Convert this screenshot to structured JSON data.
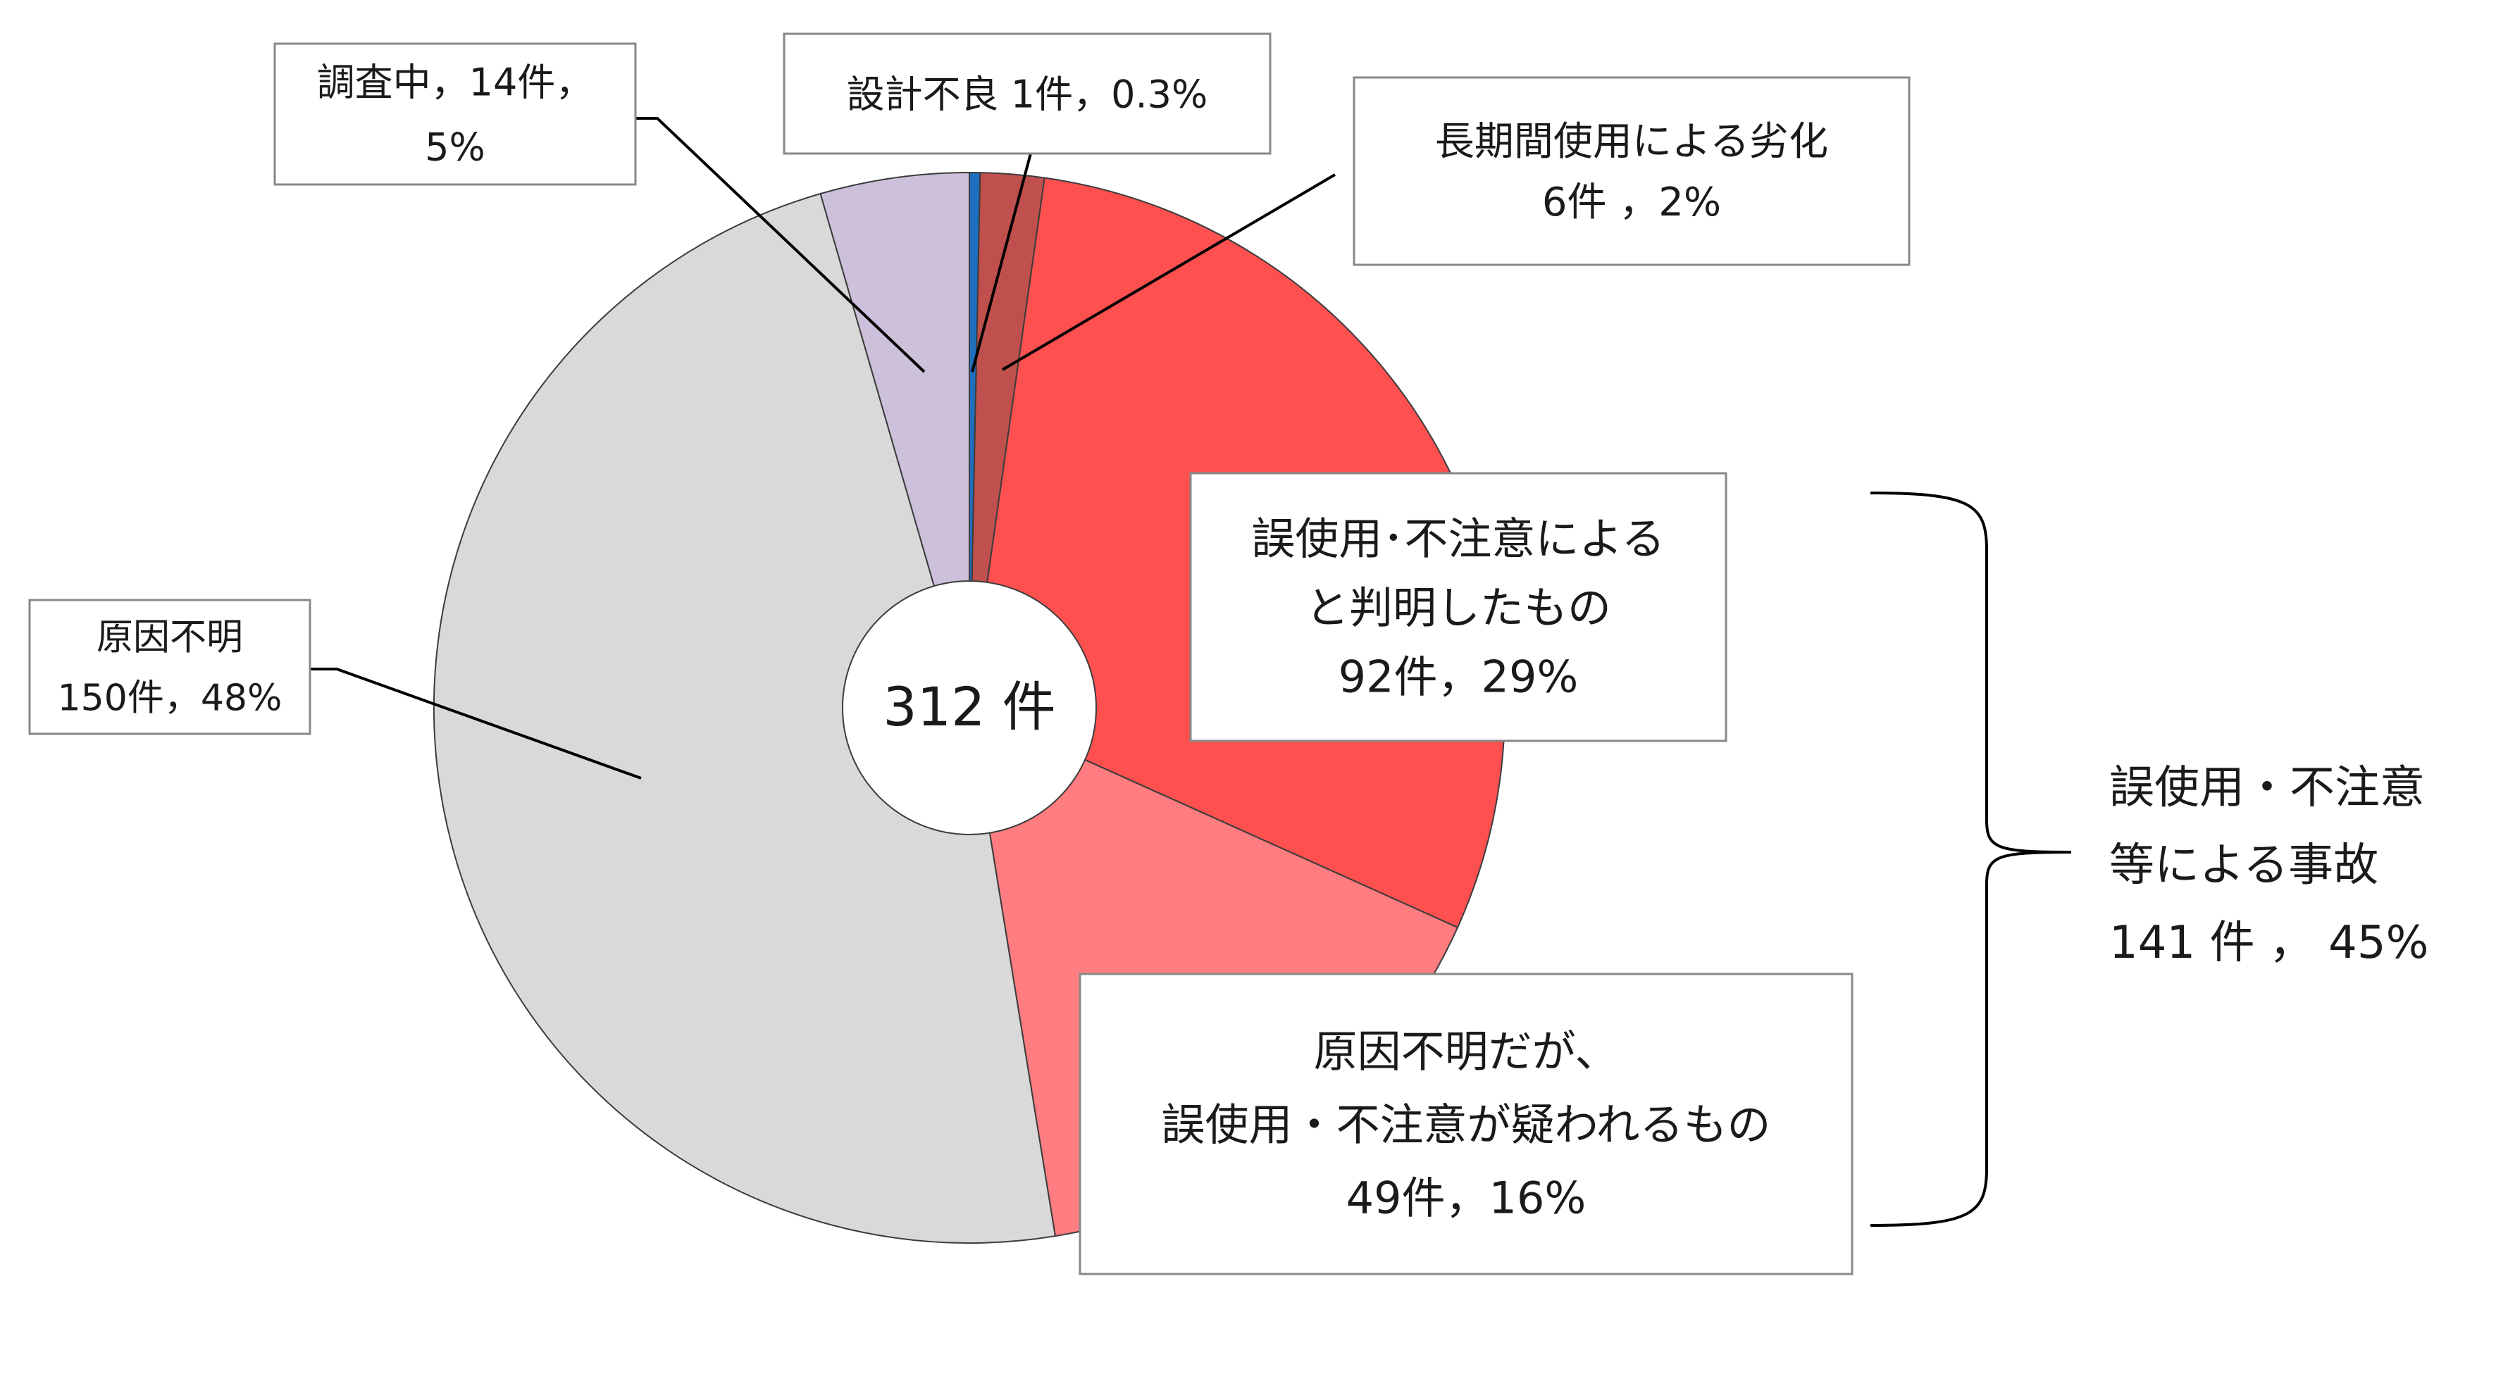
{
  "chart_data": {
    "type": "pie",
    "variant": "donut",
    "center_label": "312 件",
    "slices": [
      {
        "name": "設計不良",
        "count": 1,
        "percent": 0.3,
        "color": "#1f6fbf",
        "label_lines": [
          "設計不良 1件，0.3%"
        ]
      },
      {
        "name": "長期間使用による劣化",
        "count": 6,
        "percent": 2,
        "color": "#c0504d",
        "label_lines": [
          "長期間使用による劣化",
          "6件 ，2%"
        ]
      },
      {
        "name": "誤使用・不注意によると判明したもの",
        "count": 92,
        "percent": 29,
        "color": "#ff5050",
        "label_lines": [
          "誤使用･不注意による",
          "と判明したもの",
          "92件，29%"
        ]
      },
      {
        "name": "原因不明だが、誤使用・不注意が疑われるもの",
        "count": 49,
        "percent": 16,
        "color": "#ff7c80",
        "label_lines": [
          "原因不明だが、",
          "誤使用・不注意が疑われるもの",
          "49件，16%"
        ]
      },
      {
        "name": "原因不明",
        "count": 150,
        "percent": 48,
        "color": "#d9d9d9",
        "label_lines": [
          "原因不明",
          "150件，48%"
        ]
      },
      {
        "name": "調査中",
        "count": 14,
        "percent": 5,
        "color": "#ccc0da",
        "label_lines": [
          "調査中，14件，",
          "5%"
        ]
      }
    ],
    "group_annotation": {
      "lines": [
        "誤使用・不注意",
        "等による事故",
        "141 件 ， 45%"
      ],
      "covers": [
        "誤使用・不注意によると判明したもの",
        "原因不明だが、誤使用・不注意が疑われるもの"
      ]
    }
  }
}
